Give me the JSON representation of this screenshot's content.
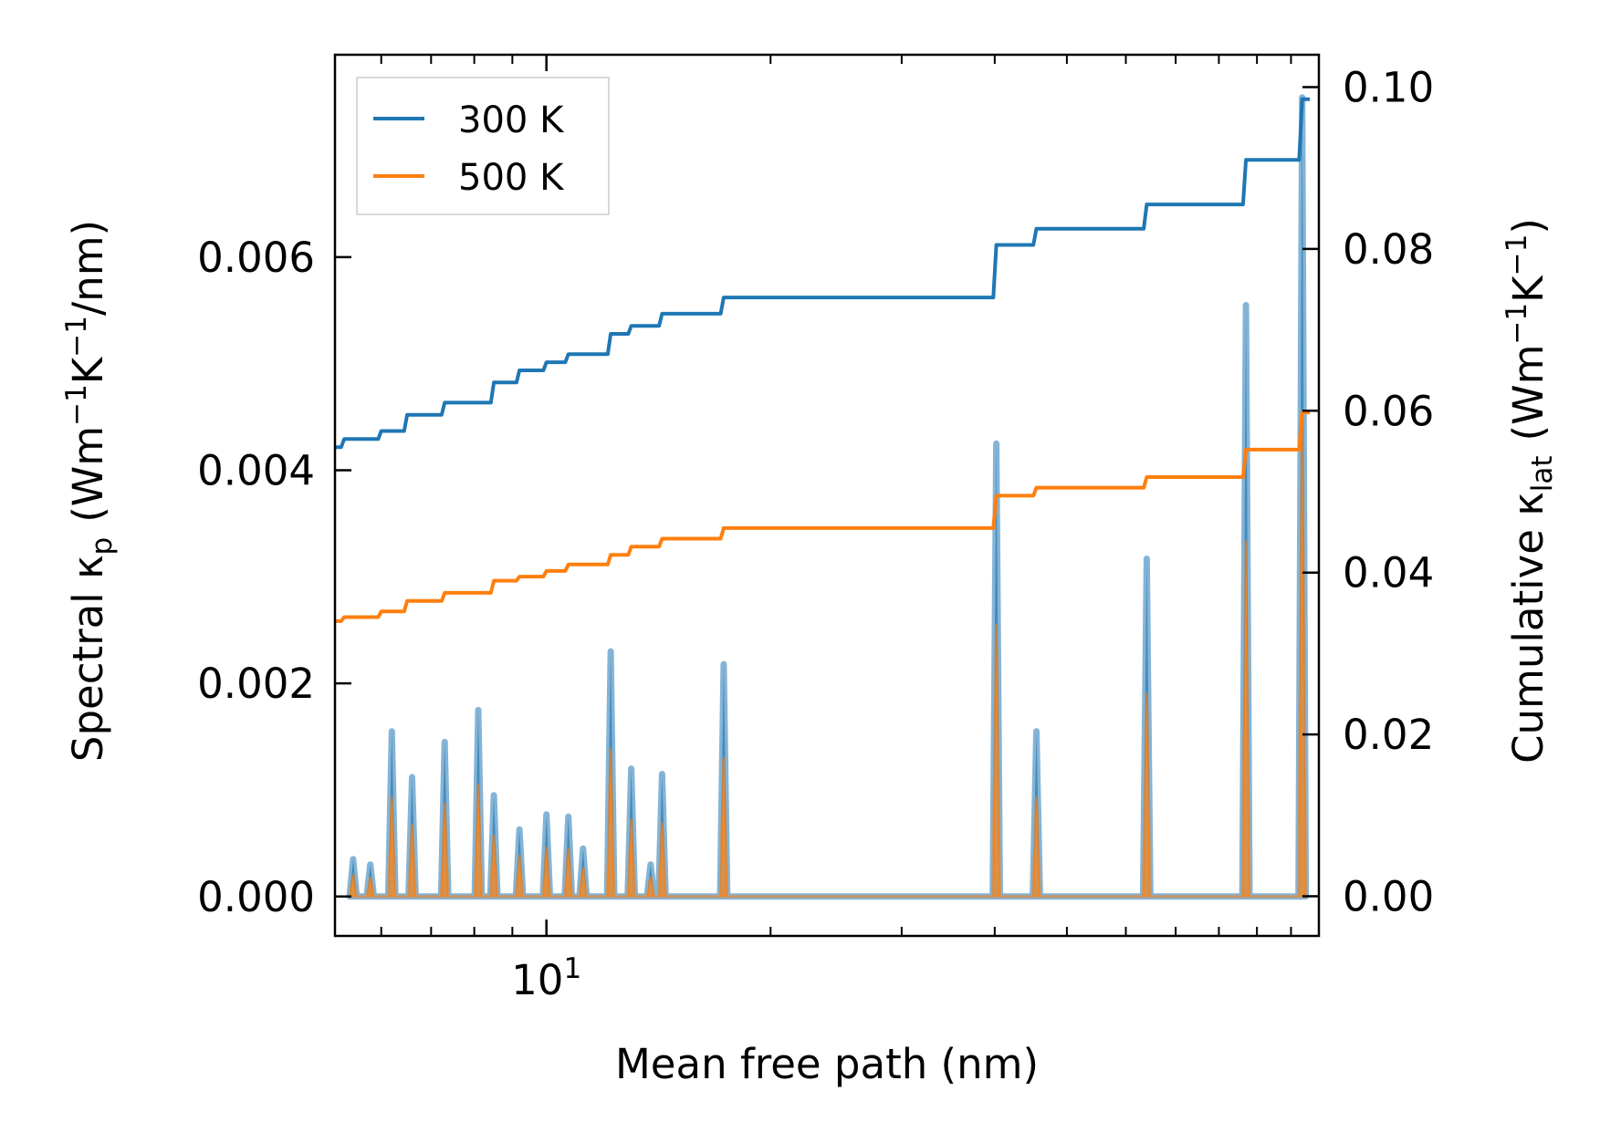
{
  "chart_data": {
    "type": "line",
    "xscale": "log",
    "xlabel": "Mean free path (nm)",
    "ylabel_left": {
      "main": "Spectral κ",
      "sub": "p",
      "unit_pre": "(Wm",
      "sup1": "−1",
      "unit_mid": "K",
      "sup2": "−1",
      "unit_post": "/nm)"
    },
    "ylabel_right": {
      "main": "Cumulative κ",
      "sub": "lat",
      "unit_pre": "(Wm",
      "sup1": "−1",
      "unit_mid": "K",
      "sup2": "−1",
      "unit_post": ")"
    },
    "xlim": [
      5.2,
      109
    ],
    "ylim_left": [
      -0.00037,
      0.0079
    ],
    "ylim_right": [
      -0.0049,
      0.104
    ],
    "x_tick_label": {
      "base": "10",
      "exp": "1",
      "value": 10
    },
    "x_minor_ticks": [
      6,
      7,
      8,
      9,
      20,
      30,
      40,
      50,
      60,
      70,
      80,
      90,
      100
    ],
    "y_left_ticks": [
      {
        "value": 0.0,
        "label": "0.000"
      },
      {
        "value": 0.002,
        "label": "0.002"
      },
      {
        "value": 0.004,
        "label": "0.004"
      },
      {
        "value": 0.006,
        "label": "0.006"
      }
    ],
    "y_right_ticks": [
      {
        "value": 0.0,
        "label": "0.00"
      },
      {
        "value": 0.02,
        "label": "0.02"
      },
      {
        "value": 0.04,
        "label": "0.04"
      },
      {
        "value": 0.06,
        "label": "0.06"
      },
      {
        "value": 0.08,
        "label": "0.08"
      },
      {
        "value": 0.1,
        "label": "0.10"
      }
    ],
    "legend": {
      "position": "top-left",
      "entries": [
        "300 K",
        "500 K"
      ]
    },
    "series": [
      {
        "name": "300 K",
        "color": "#1f77b4",
        "fill_color": "#6a9fc8",
        "spectral_peaks": [
          [
            5.5,
            0.00035
          ],
          [
            5.8,
            0.0003
          ],
          [
            6.2,
            0.00155
          ],
          [
            6.6,
            0.00112
          ],
          [
            7.3,
            0.00145
          ],
          [
            8.1,
            0.00175
          ],
          [
            8.5,
            0.00095
          ],
          [
            9.2,
            0.00063
          ],
          [
            10.0,
            0.00077
          ],
          [
            10.7,
            0.00075
          ],
          [
            11.2,
            0.00045
          ],
          [
            12.2,
            0.0023
          ],
          [
            13.0,
            0.0012
          ],
          [
            13.8,
            0.0003
          ],
          [
            14.3,
            0.00115
          ],
          [
            17.3,
            0.00218
          ],
          [
            40.2,
            0.00425
          ],
          [
            45.5,
            0.00155
          ],
          [
            64.0,
            0.00317
          ],
          [
            87.0,
            0.00555
          ],
          [
            103.5,
            0.0075
          ]
        ],
        "cumulative": [
          [
            5.2,
            0.0555
          ],
          [
            5.35,
            0.0565
          ],
          [
            6.0,
            0.0575
          ],
          [
            6.5,
            0.0595
          ],
          [
            7.3,
            0.061
          ],
          [
            8.5,
            0.0635
          ],
          [
            9.2,
            0.065
          ],
          [
            10.0,
            0.066
          ],
          [
            10.7,
            0.067
          ],
          [
            12.2,
            0.0695
          ],
          [
            13.0,
            0.0705
          ],
          [
            14.3,
            0.072
          ],
          [
            17.3,
            0.074
          ],
          [
            40.2,
            0.0805
          ],
          [
            45.5,
            0.0825
          ],
          [
            64.0,
            0.0855
          ],
          [
            87.0,
            0.091
          ],
          [
            103.5,
            0.0985
          ]
        ]
      },
      {
        "name": "500 K",
        "color": "#ff7f0e",
        "fill_color": "#e8913f",
        "spectral_peaks": [
          [
            5.5,
            0.0002
          ],
          [
            5.8,
            0.00018
          ],
          [
            6.2,
            0.00093
          ],
          [
            6.6,
            0.00067
          ],
          [
            7.3,
            0.00087
          ],
          [
            8.1,
            0.00105
          ],
          [
            8.5,
            0.00057
          ],
          [
            9.2,
            0.00038
          ],
          [
            10.0,
            0.00046
          ],
          [
            10.7,
            0.00045
          ],
          [
            11.2,
            0.00027
          ],
          [
            12.2,
            0.00138
          ],
          [
            13.0,
            0.00072
          ],
          [
            13.8,
            0.00018
          ],
          [
            14.3,
            0.00069
          ],
          [
            17.3,
            0.0013
          ],
          [
            40.2,
            0.00255
          ],
          [
            45.5,
            0.00093
          ],
          [
            64.0,
            0.0019
          ],
          [
            87.0,
            0.00333
          ],
          [
            103.5,
            0.0045
          ]
        ],
        "cumulative": [
          [
            5.2,
            0.034
          ],
          [
            5.35,
            0.0345
          ],
          [
            6.0,
            0.0352
          ],
          [
            6.5,
            0.0365
          ],
          [
            7.3,
            0.0375
          ],
          [
            8.5,
            0.039
          ],
          [
            9.2,
            0.0395
          ],
          [
            10.0,
            0.0402
          ],
          [
            10.7,
            0.041
          ],
          [
            12.2,
            0.0422
          ],
          [
            13.0,
            0.0432
          ],
          [
            14.3,
            0.0442
          ],
          [
            17.3,
            0.0455
          ],
          [
            40.2,
            0.0495
          ],
          [
            45.5,
            0.0505
          ],
          [
            64.0,
            0.0518
          ],
          [
            87.0,
            0.0552
          ],
          [
            103.5,
            0.0598
          ]
        ]
      }
    ]
  }
}
